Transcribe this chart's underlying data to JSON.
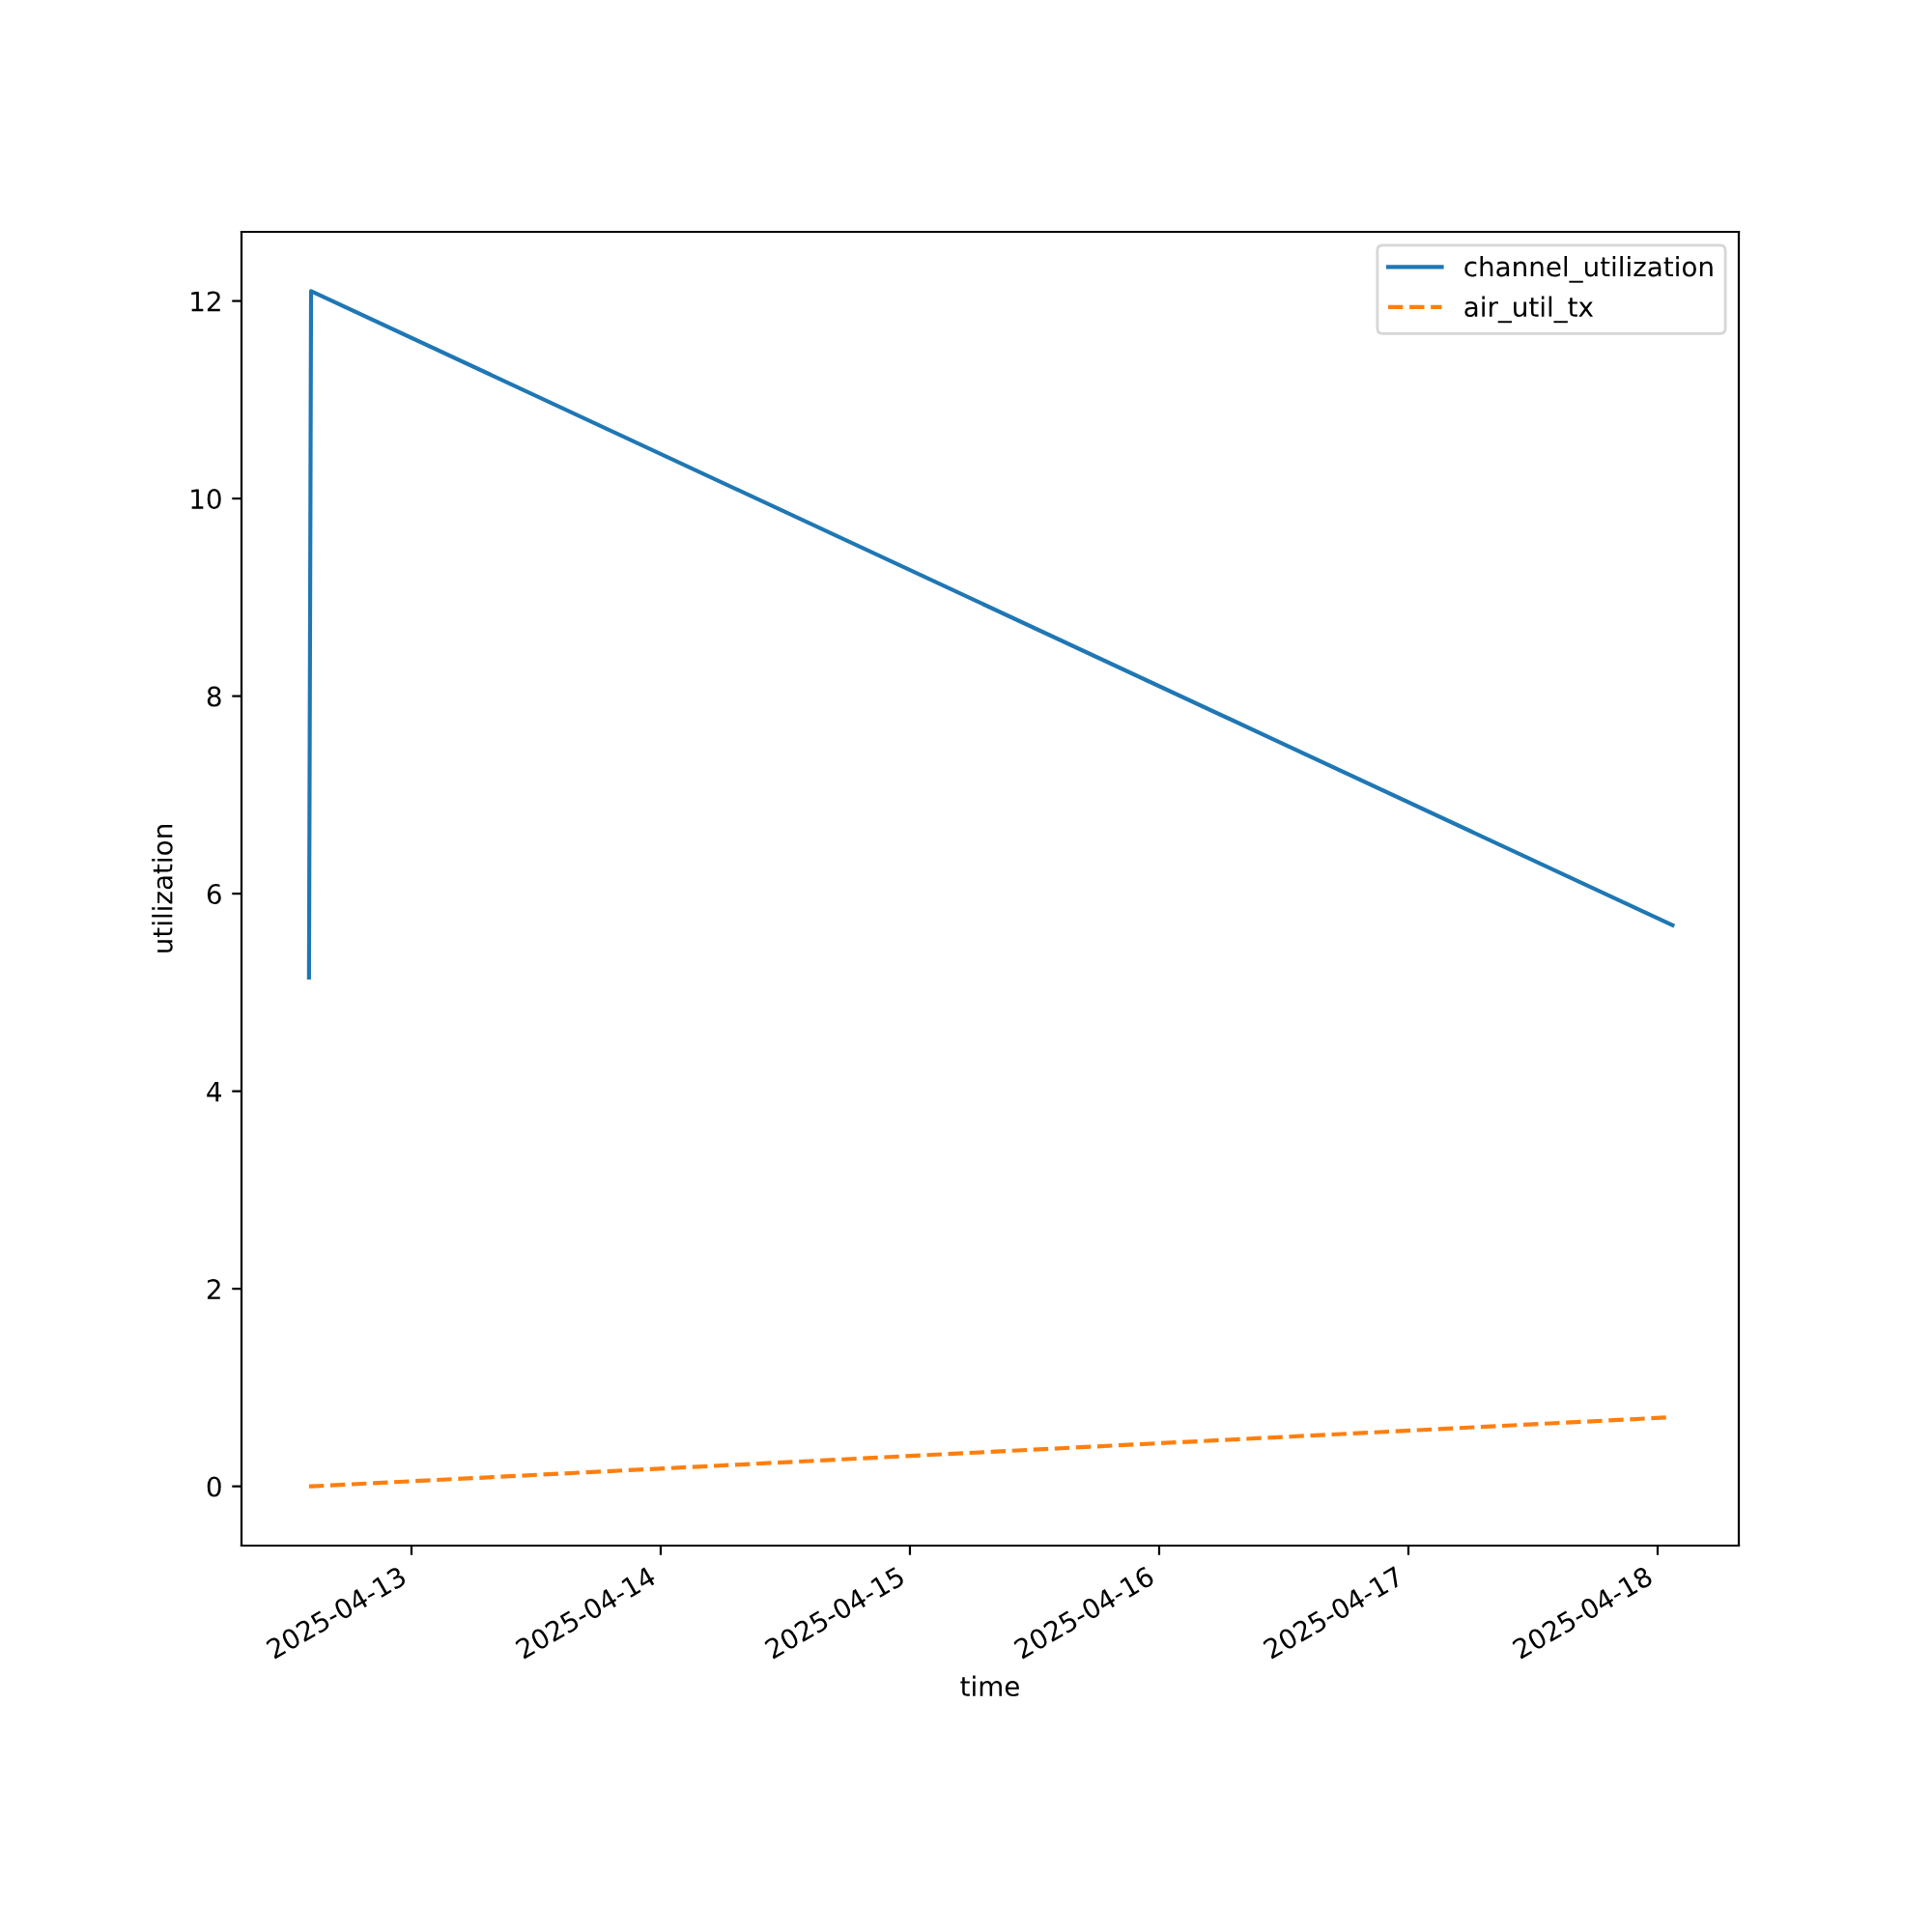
{
  "chart_data": {
    "type": "line",
    "xlabel": "time",
    "ylabel": "utilization",
    "x": [
      "2025-04-12T14:08",
      "2025-04-12T14:20",
      "2025-04-18T01:26"
    ],
    "series": [
      {
        "name": "channel_utilization",
        "color": "#1f77b4",
        "line_style": "solid",
        "values": [
          5.15,
          12.1,
          5.68
        ]
      },
      {
        "name": "air_util_tx",
        "color": "#ff7f0e",
        "line_style": "dashed",
        "values": [
          0.0,
          0.0,
          0.7
        ]
      }
    ],
    "xlim": [
      "2025-04-12T07:38",
      "2025-04-18T07:49"
    ],
    "xticks": [
      "2025-04-13",
      "2025-04-14",
      "2025-04-15",
      "2025-04-16",
      "2025-04-17",
      "2025-04-18"
    ],
    "ylim": [
      -0.6,
      12.7
    ],
    "yticks": [
      0,
      2,
      4,
      6,
      8,
      10,
      12
    ],
    "legend": "top right",
    "grid": false
  }
}
